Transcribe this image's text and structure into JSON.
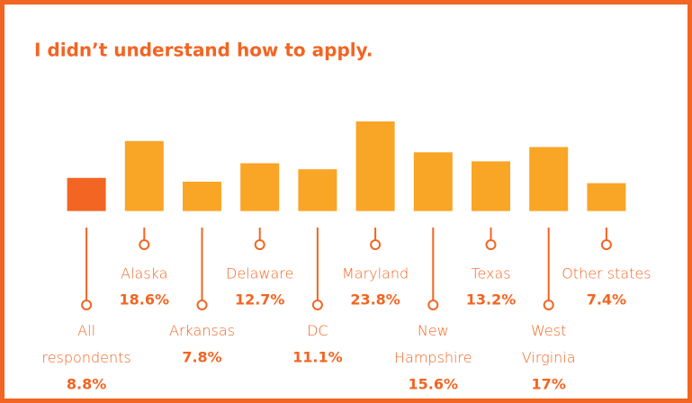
{
  "chart_data": {
    "type": "bar",
    "title": "I didn’t understand how to apply.",
    "categories": [
      "All respondents",
      "Alaska",
      "Arkansas",
      "Delaware",
      "DC",
      "Maryland",
      "New Hampshire",
      "Texas",
      "West Virginia",
      "Other states"
    ],
    "values": [
      8.8,
      18.6,
      7.8,
      12.7,
      11.1,
      23.8,
      15.6,
      13.2,
      17,
      7.4
    ],
    "value_labels": [
      "8.8%",
      "18.6%",
      "7.8%",
      "12.7%",
      "11.1%",
      "23.8%",
      "15.6%",
      "13.2%",
      "17%",
      "7.4%"
    ],
    "colors": [
      "#f26522",
      "#f9a526",
      "#f9a526",
      "#f9a526",
      "#f9a526",
      "#f9a526",
      "#f9a526",
      "#f9a526",
      "#f9a526",
      "#f9a526"
    ],
    "ylim": [
      -4.4,
      25
    ]
  }
}
